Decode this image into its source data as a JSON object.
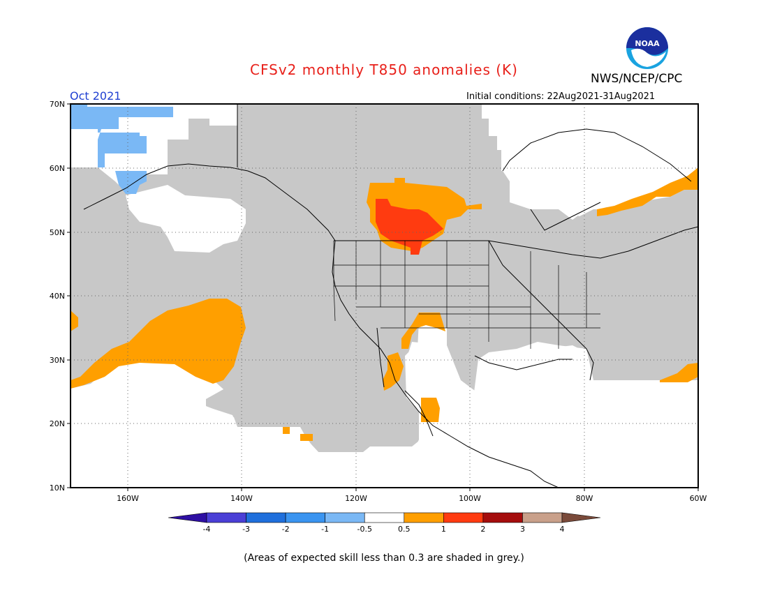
{
  "title": "CFSv2 monthly T850 anomalies (K)",
  "agency": "NWS/NCEP/CPC",
  "logo_text": "NOAA",
  "valid_period": "Oct 2021",
  "initial_conditions": "Initial conditions: 22Aug2021-31Aug2021",
  "footnote": "(Areas of expected skill less than 0.3 are shaded in grey.)",
  "map": {
    "lon_range": [
      -170,
      -60
    ],
    "lat_range": [
      10,
      70
    ],
    "lat_labels": [
      "70N",
      "60N",
      "50N",
      "40N",
      "30N",
      "20N",
      "10N"
    ],
    "lon_labels": [
      "160W",
      "140W",
      "120W",
      "100W",
      "80W",
      "60W"
    ],
    "grid": "dotted"
  },
  "colorbar": {
    "tick_labels": [
      "-4",
      "-3",
      "-2",
      "-1",
      "-0.5",
      "0.5",
      "1",
      "2",
      "3",
      "4"
    ],
    "colors": [
      "#2e0fa3",
      "#4a3fd6",
      "#1f6fdc",
      "#3a94f0",
      "#7ab8f5",
      "#ffffff",
      "#ff9f00",
      "#ff3b10",
      "#a50d0d",
      "#c9a08a",
      "#7a4a3a"
    ]
  },
  "colors": {
    "grey_low_skill": "#c8c8c8",
    "positive_light": "#ff9f00",
    "positive_medium": "#ff3b10",
    "negative_light": "#7ab8f5",
    "title": "#e8201a",
    "period": "#1f3fd1"
  }
}
